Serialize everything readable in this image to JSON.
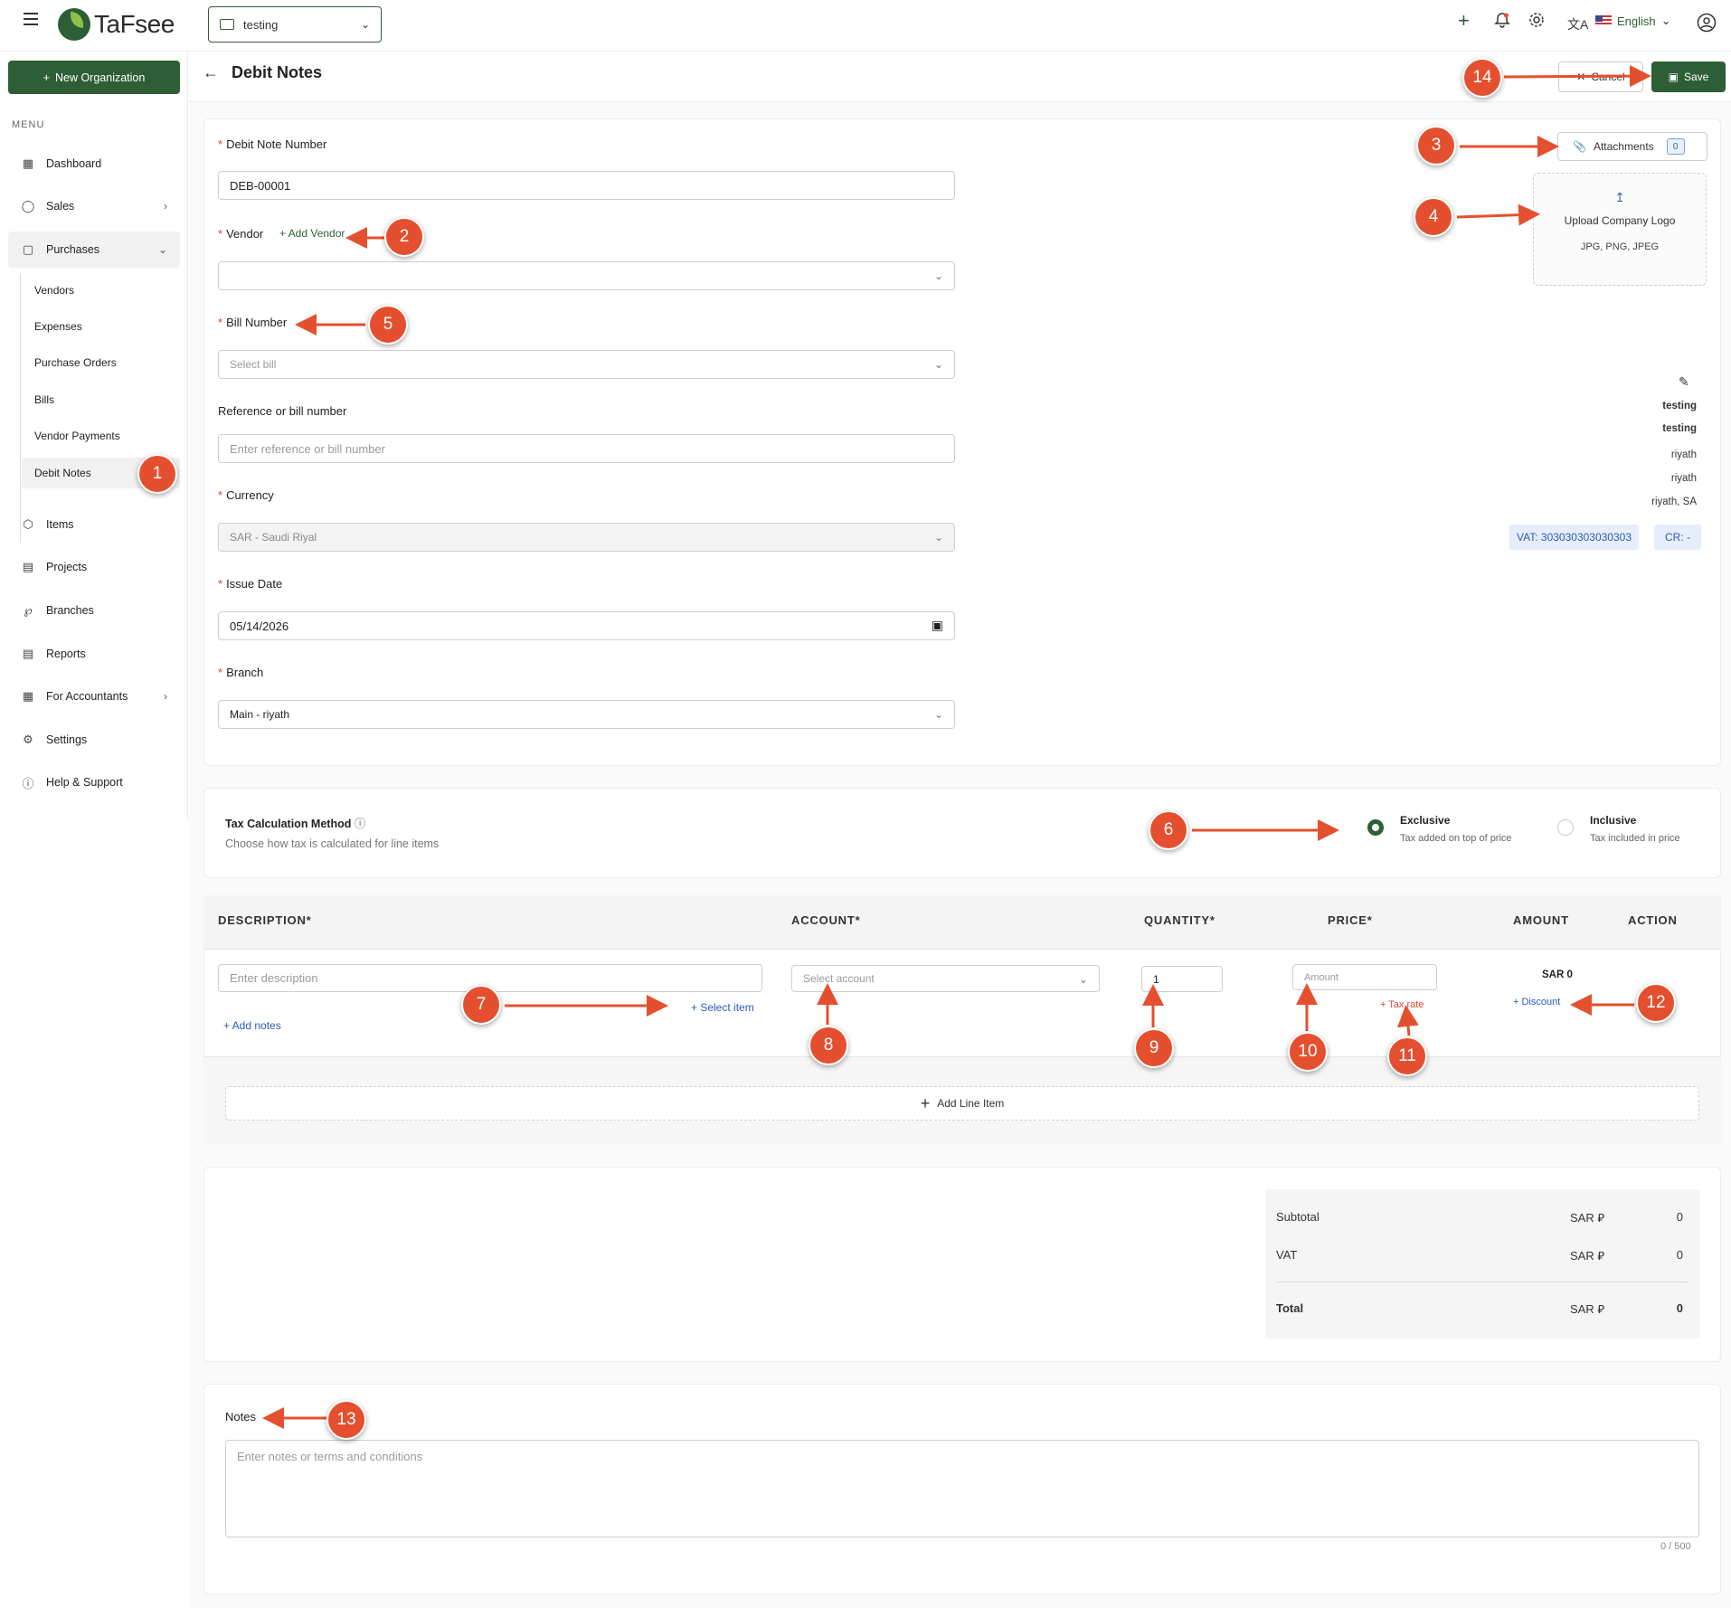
{
  "brand": {
    "logo_text": "TaFsee",
    "accent": "#2e5e35",
    "callout_color": "#e4502f"
  },
  "topbar": {
    "org": "testing",
    "language": "English",
    "icons": [
      "menu-icon",
      "plus-icon",
      "bell-icon",
      "gear-icon",
      "translate-icon",
      "flag-icon",
      "user-icon"
    ]
  },
  "sidebar": {
    "new_org": "New Organization",
    "menu_label": "MENU",
    "items": [
      {
        "label": "Dashboard",
        "icon": "grid-icon"
      },
      {
        "label": "Sales",
        "icon": "tag-icon"
      },
      {
        "label": "Purchases",
        "icon": "bag-icon"
      },
      {
        "label": "Items",
        "icon": "box-icon"
      },
      {
        "label": "Projects",
        "icon": "doc-icon"
      },
      {
        "label": "Branches",
        "icon": "branch-icon"
      },
      {
        "label": "Reports",
        "icon": "report-icon"
      },
      {
        "label": "For Accountants",
        "icon": "calc-icon"
      },
      {
        "label": "Settings",
        "icon": "gear-icon"
      },
      {
        "label": "Help & Support",
        "icon": "info-icon"
      }
    ],
    "purchases_sub": [
      "Vendors",
      "Expenses",
      "Purchase Orders",
      "Bills",
      "Vendor Payments",
      "Debit Notes"
    ]
  },
  "header": {
    "title": "Debit Notes",
    "cancel": "Cancel",
    "save": "Save"
  },
  "form": {
    "debit_note_label": "Debit Note Number",
    "debit_note_value": "DEB-00001",
    "vendor_label": "Vendor",
    "add_vendor": "+ Add Vendor",
    "bill_label": "Bill Number",
    "bill_placeholder": "Select bill",
    "reference_label": "Reference or bill number",
    "reference_placeholder": "Enter reference or bill number",
    "currency_label": "Currency",
    "currency_value": "SAR - Saudi Riyal",
    "issue_date_label": "Issue Date",
    "issue_date_value": "05/14/2026",
    "branch_label": "Branch",
    "branch_value": "Main - riyath"
  },
  "attachments": {
    "label": "Attachments",
    "count": "0"
  },
  "upload": {
    "title": "Upload Company Logo",
    "formats": "JPG, PNG, JPEG"
  },
  "org_info": {
    "name1": "testing",
    "name2": "testing",
    "line1": "riyath",
    "line2": "riyath",
    "line3": "riyath, SA",
    "vat": "VAT: 303030303030303",
    "cr": "CR: -"
  },
  "tax": {
    "title": "Tax Calculation Method",
    "subtitle": "Choose how tax is calculated for line items",
    "exclusive_title": "Exclusive",
    "exclusive_sub": "Tax added on top of price",
    "inclusive_title": "Inclusive",
    "inclusive_sub": "Tax included in price",
    "selected": "Exclusive"
  },
  "table": {
    "headers": [
      "DESCRIPTION*",
      "ACCOUNT*",
      "QUANTITY*",
      "PRICE*",
      "AMOUNT",
      "ACTION"
    ],
    "description_placeholder": "Enter description",
    "select_item": "+ Select item",
    "add_notes": "+ Add notes",
    "account_placeholder": "Select account",
    "quantity": "1",
    "price_placeholder": "Amount",
    "tax_rate": "+ Tax rate",
    "amount": "SAR 0",
    "discount": "+ Discount",
    "add_line": "Add Line Item"
  },
  "totals": {
    "subtotal_label": "Subtotal",
    "vat_label": "VAT",
    "total_label": "Total",
    "currency": "SAR ⃁",
    "subtotal": "0",
    "vat": "0",
    "total": "0"
  },
  "notes": {
    "label": "Notes",
    "placeholder": "Enter notes or terms and conditions",
    "counter": "0 / 500"
  },
  "callouts": [
    "1",
    "2",
    "3",
    "4",
    "5",
    "6",
    "7",
    "8",
    "9",
    "10",
    "11",
    "12",
    "13",
    "14"
  ]
}
